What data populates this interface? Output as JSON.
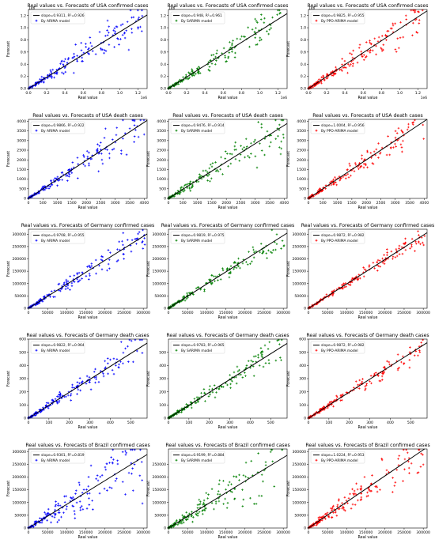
{
  "chart_data": [
    {
      "type": "scatter",
      "panel": [
        0,
        0
      ],
      "title": "Real values vs. Forecasts of USA confirmed cases",
      "xlabel": "Real value",
      "ylabel": "Forecast",
      "legend_fit": "slope=0.9311, R²=0.926",
      "legend_series": "By ARIMA model",
      "color": "#0000ff",
      "xlim": [
        0,
        1.3
      ],
      "ylim": [
        0,
        1.3
      ],
      "xticks": [
        0,
        0.2,
        0.4,
        0.6,
        0.8,
        1.0,
        1.2
      ],
      "yticks": [
        0,
        0.2,
        0.4,
        0.6,
        0.8,
        1.0,
        1.2
      ],
      "scale_label": "1e6",
      "fit_slope": 0.9311,
      "spread": 0.18,
      "max_real": 1.25,
      "seed": 11
    },
    {
      "type": "scatter",
      "panel": [
        0,
        1
      ],
      "title": "Real values vs. Forecasts of USA confirmed cases",
      "xlabel": "Real value",
      "ylabel": "",
      "legend_fit": "slope=0.948, R²=0.961",
      "legend_series": "By SARIMA model",
      "color": "#008000",
      "xlim": [
        0,
        1.3
      ],
      "ylim": [
        0,
        1.3
      ],
      "xticks": [
        0,
        0.2,
        0.4,
        0.6,
        0.8,
        1.0,
        1.2
      ],
      "yticks": [
        0,
        0.2,
        0.4,
        0.6,
        0.8,
        1.0,
        1.2
      ],
      "scale_label": "1e6",
      "fit_slope": 0.948,
      "spread": 0.14,
      "max_real": 1.25,
      "seed": 12
    },
    {
      "type": "scatter",
      "panel": [
        0,
        2
      ],
      "title": "Real values vs. Forecasts of USA confirmed cases",
      "xlabel": "Real value",
      "ylabel": "Forecast",
      "legend_fit": "slope=0.9825, R²=0.955",
      "legend_series": "By PPO-ARIMA model",
      "color": "#ff0000",
      "xlim": [
        0,
        1.3
      ],
      "ylim": [
        0,
        1.3
      ],
      "xticks": [
        0,
        0.2,
        0.4,
        0.6,
        0.8,
        1.0,
        1.2
      ],
      "yticks": [
        0,
        0.2,
        0.4,
        0.6,
        0.8,
        1.0,
        1.2
      ],
      "scale_label": "1e6",
      "fit_slope": 0.9825,
      "spread": 0.15,
      "max_real": 1.25,
      "seed": 13
    },
    {
      "type": "scatter",
      "panel": [
        1,
        0
      ],
      "title": "Real values vs. Forecasts of USA death cases",
      "xlabel": "Real value",
      "ylabel": "Forecast",
      "legend_fit": "slope=0.9866, R²=0.922",
      "legend_series": "By ARIMA model",
      "color": "#0000ff",
      "xlim": [
        0,
        4100
      ],
      "ylim": [
        0,
        4100
      ],
      "xticks": [
        0,
        500,
        1000,
        1500,
        2000,
        2500,
        3000,
        3500,
        4000
      ],
      "yticks": [
        0,
        500,
        1000,
        1500,
        2000,
        2500,
        3000,
        3500,
        4000
      ],
      "scale_label": "",
      "fit_slope": 0.9866,
      "spread": 0.16,
      "max_real": 4000,
      "seed": 21
    },
    {
      "type": "scatter",
      "panel": [
        1,
        1
      ],
      "title": "Real values vs. Forecasts of USA death cases",
      "xlabel": "Real value",
      "ylabel": "Forecast",
      "legend_fit": "slope=0.9476, R²=0.914",
      "legend_series": "By SARIMA model",
      "color": "#008000",
      "xlim": [
        0,
        4100
      ],
      "ylim": [
        0,
        4100
      ],
      "xticks": [
        0,
        500,
        1000,
        1500,
        2000,
        2500,
        3000,
        3500,
        4000
      ],
      "yticks": [
        0,
        500,
        1000,
        1500,
        2000,
        2500,
        3000,
        3500,
        4000
      ],
      "scale_label": "",
      "fit_slope": 0.9476,
      "spread": 0.18,
      "max_real": 4000,
      "seed": 22
    },
    {
      "type": "scatter",
      "panel": [
        1,
        2
      ],
      "title": "Real values vs. Forecasts of USA death cases",
      "xlabel": "Real value",
      "ylabel": "Forecast",
      "legend_fit": "slope=1.0004, R²=0.956",
      "legend_series": "By PPO-ARIMA model",
      "color": "#ff0000",
      "xlim": [
        0,
        4100
      ],
      "ylim": [
        0,
        4100
      ],
      "xticks": [
        0,
        500,
        1000,
        1500,
        2000,
        2500,
        3000,
        3500,
        4000
      ],
      "yticks": [
        0,
        500,
        1000,
        1500,
        2000,
        2500,
        3000,
        3500,
        4000
      ],
      "scale_label": "",
      "fit_slope": 1.0004,
      "spread": 0.13,
      "max_real": 4000,
      "seed": 23
    },
    {
      "type": "scatter",
      "panel": [
        2,
        0
      ],
      "title": "Real values vs. Forecasts of Germany confirmed cases",
      "xlabel": "Real value",
      "ylabel": "Forecast",
      "legend_fit": "slope=0.9708, R²=0.955",
      "legend_series": "By ARIMA model",
      "color": "#0000ff",
      "xlim": [
        0,
        310000
      ],
      "ylim": [
        0,
        320000
      ],
      "xticks": [
        0,
        50000,
        100000,
        150000,
        200000,
        250000,
        300000
      ],
      "yticks": [
        0,
        50000,
        100000,
        150000,
        200000,
        250000,
        300000
      ],
      "scale_label": "",
      "fit_slope": 0.9708,
      "spread": 0.12,
      "max_real": 305000,
      "seed": 31
    },
    {
      "type": "scatter",
      "panel": [
        2,
        1
      ],
      "title": "Real values vs. Forecasts of Germany confirmed cases",
      "xlabel": "Real value",
      "ylabel": "Forecast",
      "legend_fit": "slope=0.9819, R²=0.975",
      "legend_series": "By SARIMA model",
      "color": "#008000",
      "xlim": [
        0,
        310000
      ],
      "ylim": [
        0,
        320000
      ],
      "xticks": [
        0,
        50000,
        100000,
        150000,
        200000,
        250000,
        300000
      ],
      "yticks": [
        0,
        50000,
        100000,
        150000,
        200000,
        250000,
        300000
      ],
      "scale_label": "",
      "fit_slope": 0.9819,
      "spread": 0.1,
      "max_real": 305000,
      "seed": 32
    },
    {
      "type": "scatter",
      "panel": [
        2,
        2
      ],
      "title": "Real values vs. Forecasts of Germany confirmed cases",
      "xlabel": "Real value",
      "ylabel": "Forecast",
      "legend_fit": "slope=0.9872, R²=0.982",
      "legend_series": "By PPO-ARIMA model",
      "color": "#ff0000",
      "xlim": [
        0,
        310000
      ],
      "ylim": [
        0,
        320000
      ],
      "xticks": [
        0,
        50000,
        100000,
        150000,
        200000,
        250000,
        300000
      ],
      "yticks": [
        0,
        50000,
        100000,
        150000,
        200000,
        250000,
        300000
      ],
      "scale_label": "",
      "fit_slope": 0.9872,
      "spread": 0.08,
      "max_real": 305000,
      "seed": 33
    },
    {
      "type": "scatter",
      "panel": [
        3,
        0
      ],
      "title": "Real values vs. Forecasts of Germany death cases",
      "xlabel": "Real value",
      "ylabel": "Forecast",
      "legend_fit": "slope=0.9822, R²=0.964",
      "legend_series": "By ARIMA model",
      "color": "#0000ff",
      "xlim": [
        0,
        580
      ],
      "ylim": [
        0,
        600
      ],
      "xticks": [
        0,
        100,
        200,
        300,
        400,
        500
      ],
      "yticks": [
        0,
        100,
        200,
        300,
        400,
        500,
        600
      ],
      "scale_label": "",
      "fit_slope": 0.9822,
      "spread": 0.12,
      "max_real": 560,
      "seed": 41
    },
    {
      "type": "scatter",
      "panel": [
        3,
        1
      ],
      "title": "Real values vs. Forecasts of Germany death cases",
      "xlabel": "Real value",
      "ylabel": "Forecast",
      "legend_fit": "slope=0.9783, R²=0.965",
      "legend_series": "By SARIMA model",
      "color": "#008000",
      "xlim": [
        0,
        580
      ],
      "ylim": [
        0,
        600
      ],
      "xticks": [
        0,
        100,
        200,
        300,
        400,
        500
      ],
      "yticks": [
        0,
        100,
        200,
        300,
        400,
        500
      ],
      "scale_label": "",
      "fit_slope": 0.9783,
      "spread": 0.12,
      "max_real": 560,
      "seed": 42
    },
    {
      "type": "scatter",
      "panel": [
        3,
        2
      ],
      "title": "Real values vs. Forecasts of Germany death cases",
      "xlabel": "Real value",
      "ylabel": "Forecast",
      "legend_fit": "slope=0.9872, R²=0.982",
      "legend_series": "By PPO-ARIMA model",
      "color": "#ff0000",
      "xlim": [
        0,
        580
      ],
      "ylim": [
        0,
        600
      ],
      "xticks": [
        0,
        100,
        200,
        300,
        400,
        500
      ],
      "yticks": [
        0,
        100,
        200,
        300,
        400,
        500,
        600
      ],
      "scale_label": "",
      "fit_slope": 0.9872,
      "spread": 0.09,
      "max_real": 560,
      "seed": 43
    },
    {
      "type": "scatter",
      "panel": [
        4,
        0
      ],
      "title": "Real values vs. Forecasts of Brazil confirmed cases",
      "xlabel": "Real value",
      "ylabel": "Forecast",
      "legend_fit": "slope=0.9301, R²=0.819",
      "legend_series": "By ARIMA model",
      "color": "#0000ff",
      "xlim": [
        0,
        310000
      ],
      "ylim": [
        0,
        310000
      ],
      "xticks": [
        0,
        50000,
        100000,
        150000,
        200000,
        250000,
        300000
      ],
      "yticks": [
        0,
        50000,
        100000,
        150000,
        200000,
        250000,
        300000
      ],
      "scale_label": "",
      "fit_slope": 0.9301,
      "spread": 0.3,
      "max_real": 300000,
      "seed": 51
    },
    {
      "type": "scatter",
      "panel": [
        4,
        1
      ],
      "title": "Real values vs. Forecasts of Brazil confirmed cases",
      "xlabel": "Real value",
      "ylabel": "Forecast",
      "legend_fit": "slope=0.9199, R²=0.884",
      "legend_series": "By SARIMA model",
      "color": "#008000",
      "xlim": [
        0,
        310000
      ],
      "ylim": [
        0,
        310000
      ],
      "xticks": [
        0,
        50000,
        100000,
        150000,
        200000,
        250000,
        300000
      ],
      "yticks": [
        0,
        50000,
        100000,
        150000,
        200000,
        250000
      ],
      "scale_label": "",
      "fit_slope": 0.9199,
      "spread": 0.26,
      "max_real": 300000,
      "seed": 52
    },
    {
      "type": "scatter",
      "panel": [
        4,
        2
      ],
      "title": "Real values vs. Forecasts of Brazil confirmed cases",
      "xlabel": "Real value",
      "ylabel": "Forecast",
      "legend_fit": "slope=1.0224, R²=0.953",
      "legend_series": "By PPO-ARIMA model",
      "color": "#ff0000",
      "xlim": [
        0,
        310000
      ],
      "ylim": [
        0,
        310000
      ],
      "xticks": [
        0,
        50000,
        100000,
        150000,
        200000,
        250000,
        300000
      ],
      "yticks": [
        0,
        50000,
        100000,
        150000,
        200000,
        250000,
        300000
      ],
      "scale_label": "",
      "fit_slope": 1.0224,
      "spread": 0.18,
      "max_real": 300000,
      "seed": 53
    }
  ]
}
